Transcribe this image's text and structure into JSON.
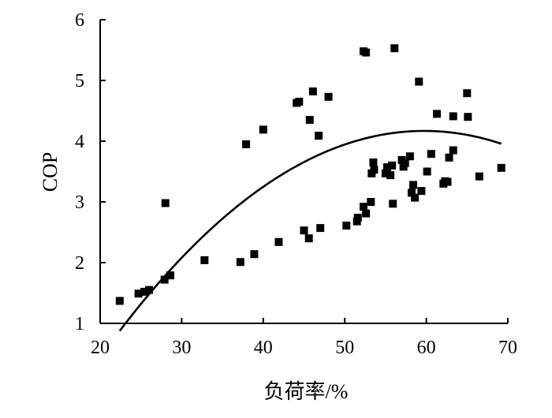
{
  "chart_data": {
    "type": "scatter",
    "xlabel": "负荷率/%",
    "ylabel": "COP",
    "xlim": [
      20,
      70
    ],
    "ylim": [
      1,
      6
    ],
    "x_ticks": [
      20,
      30,
      40,
      50,
      60,
      70
    ],
    "y_ticks": [
      1,
      2,
      3,
      4,
      5,
      6
    ],
    "grid": false,
    "legend": "none",
    "marker": "square",
    "color": "#000000",
    "series": [
      {
        "points": [
          [
            22.4,
            1.37
          ],
          [
            24.7,
            1.49
          ],
          [
            25.4,
            1.52
          ],
          [
            26.0,
            1.55
          ],
          [
            27.9,
            1.72
          ],
          [
            28.6,
            1.79
          ],
          [
            28.0,
            2.98
          ],
          [
            32.8,
            2.04
          ],
          [
            37.2,
            2.01
          ],
          [
            38.9,
            2.14
          ],
          [
            41.9,
            2.34
          ],
          [
            45.0,
            2.53
          ],
          [
            45.6,
            2.4
          ],
          [
            47.0,
            2.57
          ],
          [
            50.2,
            2.61
          ],
          [
            51.5,
            2.68
          ],
          [
            51.6,
            2.74
          ],
          [
            52.3,
            2.92
          ],
          [
            52.6,
            2.81
          ],
          [
            53.2,
            3.0
          ],
          [
            53.3,
            3.47
          ],
          [
            53.5,
            3.65
          ],
          [
            53.6,
            3.53
          ],
          [
            55.0,
            3.47
          ],
          [
            55.2,
            3.57
          ],
          [
            55.6,
            3.44
          ],
          [
            55.8,
            3.6
          ],
          [
            55.9,
            2.97
          ],
          [
            57.0,
            3.69
          ],
          [
            57.2,
            3.58
          ],
          [
            57.4,
            3.64
          ],
          [
            58.0,
            3.75
          ],
          [
            58.2,
            3.15
          ],
          [
            58.4,
            3.28
          ],
          [
            58.6,
            3.07
          ],
          [
            59.4,
            3.18
          ],
          [
            60.1,
            3.5
          ],
          [
            60.6,
            3.79
          ],
          [
            62.1,
            3.3
          ],
          [
            62.3,
            3.34
          ],
          [
            62.6,
            3.33
          ],
          [
            62.8,
            3.73
          ],
          [
            63.3,
            3.85
          ],
          [
            66.5,
            3.42
          ],
          [
            69.2,
            3.56
          ],
          [
            37.9,
            3.95
          ],
          [
            40.0,
            4.19
          ],
          [
            44.1,
            4.63
          ],
          [
            44.4,
            4.65
          ],
          [
            45.7,
            4.35
          ],
          [
            46.1,
            4.82
          ],
          [
            46.8,
            4.09
          ],
          [
            48.0,
            4.73
          ],
          [
            52.3,
            5.48
          ],
          [
            52.6,
            5.46
          ],
          [
            56.1,
            5.53
          ],
          [
            59.1,
            4.98
          ],
          [
            61.3,
            4.45
          ],
          [
            63.3,
            4.41
          ],
          [
            65.1,
            4.4
          ],
          [
            65.0,
            4.79
          ]
        ]
      }
    ],
    "fit_curve": {
      "x_range": [
        22.4,
        69.2
      ],
      "coefficients": [
        -4.26,
        0.2822,
        -0.002362
      ]
    }
  }
}
